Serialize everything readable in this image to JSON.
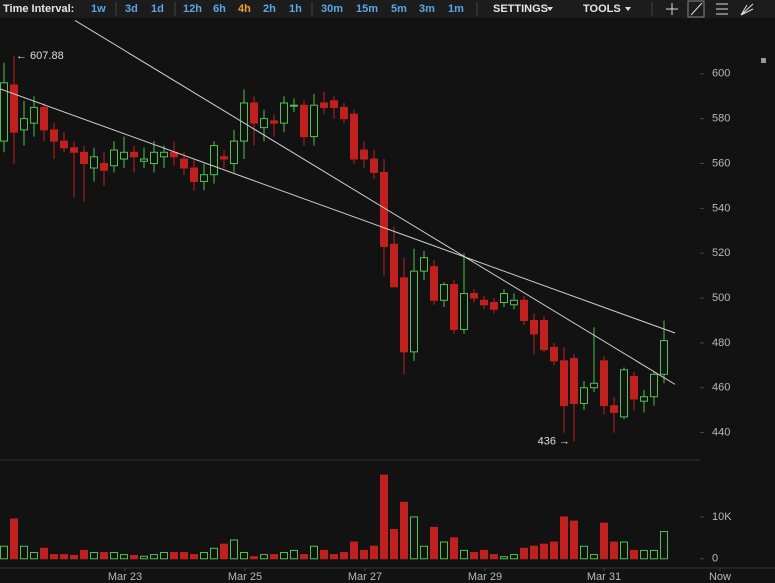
{
  "toolbar": {
    "label": "Time Interval:",
    "intervals": [
      "1w",
      "3d",
      "1d",
      "12h",
      "6h",
      "4h",
      "2h",
      "1h",
      "30m",
      "15m",
      "5m",
      "3m",
      "1m"
    ],
    "active": "4h",
    "settings": "SETTINGS",
    "tools": "TOOLS"
  },
  "chart_data": {
    "type": "candlestick",
    "open": [
      570,
      595,
      575,
      578,
      585,
      575,
      570,
      567,
      565,
      558,
      560,
      559,
      562,
      565,
      561,
      560,
      563,
      565,
      562,
      558,
      552,
      555,
      563,
      560,
      570,
      587,
      576,
      579,
      578,
      586,
      586,
      572,
      587,
      588,
      585,
      582,
      566,
      562,
      556,
      524,
      509,
      476,
      512,
      514,
      499,
      506,
      486,
      502,
      499,
      498,
      498,
      497,
      499,
      490,
      490,
      478,
      472,
      473,
      453,
      460,
      472,
      452,
      447,
      465,
      454,
      456,
      466
    ],
    "high": [
      605,
      607.88,
      588,
      590,
      587,
      578,
      574,
      570,
      568,
      567,
      565,
      570,
      572,
      568,
      567,
      570,
      568,
      570,
      565,
      562,
      560,
      570,
      566,
      575,
      593,
      590,
      584,
      582,
      590,
      589,
      588,
      591,
      592,
      590,
      587,
      584,
      570,
      566,
      562,
      532,
      518,
      522,
      521,
      517,
      507,
      508,
      520,
      504,
      501,
      500,
      504,
      502,
      501,
      493,
      492,
      480,
      478,
      475,
      463,
      487,
      474,
      456,
      469,
      467,
      459,
      467,
      490
    ],
    "low": [
      565,
      560,
      568,
      572,
      570,
      562,
      565,
      545,
      543,
      552,
      550,
      556,
      558,
      556,
      558,
      556,
      558,
      559,
      555,
      548,
      548,
      551,
      558,
      556,
      562,
      568,
      570,
      572,
      574,
      583,
      568,
      568,
      582,
      580,
      578,
      560,
      558,
      553,
      510,
      505,
      466,
      472,
      508,
      497,
      496,
      484,
      484,
      498,
      495,
      493,
      496,
      495,
      488,
      475,
      476,
      470,
      440,
      436,
      450,
      458,
      448,
      440,
      446,
      450,
      449,
      452,
      462
    ],
    "close": [
      596,
      574,
      580,
      585,
      575,
      570,
      567,
      565,
      560,
      563,
      557,
      566,
      565,
      563,
      562,
      565,
      565,
      563,
      558,
      552,
      555,
      568,
      562,
      570,
      587,
      578,
      580,
      578,
      587,
      586,
      572,
      586,
      585,
      585,
      580,
      562,
      562,
      556,
      523,
      505,
      476,
      512,
      518,
      499,
      506,
      486,
      502,
      500,
      497,
      495,
      502,
      499,
      490,
      484,
      477,
      472,
      452,
      453,
      460,
      462,
      452,
      449,
      468,
      455,
      456,
      466,
      481
    ],
    "volume": [
      3000,
      9500,
      3000,
      1500,
      2500,
      1000,
      1000,
      800,
      2000,
      1500,
      1500,
      1500,
      1000,
      800,
      600,
      1000,
      1500,
      1500,
      1500,
      1000,
      1500,
      2500,
      3500,
      4500,
      1500,
      500,
      1000,
      1000,
      1500,
      2000,
      1000,
      3000,
      2000,
      1000,
      1500,
      4000,
      2000,
      3000,
      20000,
      7000,
      13500,
      10000,
      3000,
      7500,
      4000,
      5000,
      2000,
      1500,
      2000,
      1000,
      500,
      1000,
      2500,
      3000,
      3500,
      4000,
      10000,
      9000,
      3000,
      1000,
      8500,
      4000,
      4000,
      2000,
      2000,
      2000,
      6500
    ],
    "ylim": [
      430,
      624
    ],
    "yticks": [
      440,
      460,
      480,
      500,
      520,
      540,
      560,
      580,
      600
    ],
    "volume_ylim": [
      -2200,
      22400
    ],
    "volume_yticks": [
      0,
      {
        "value": 10000,
        "label": "10K"
      }
    ],
    "xlim": [
      -0.4,
      69.6
    ],
    "xticks": [
      {
        "value": 12.1,
        "label": "Mar 23"
      },
      {
        "value": 24.1,
        "label": "Mar 25"
      },
      {
        "value": 36.1,
        "label": "Mar 27"
      },
      {
        "value": 48.1,
        "label": "Mar 29"
      },
      {
        "value": 60.0,
        "label": "Mar 31"
      },
      {
        "value": 71.6,
        "label": "Now"
      }
    ],
    "trendlines": [
      {
        "x": [
          -0.4,
          67.1
        ],
        "y": [
          593.3,
          484.4
        ]
      },
      {
        "x": [
          7.1,
          67.1
        ],
        "y": [
          623.8,
          461.5
        ]
      }
    ],
    "annotations": [
      {
        "label": "← 607.88",
        "value": 607.88
      },
      {
        "label": "436 →",
        "value": 436
      }
    ],
    "up_color": "#4fc24f",
    "down_color": "#c0201e",
    "trendline_color": "#d0d0d0"
  }
}
